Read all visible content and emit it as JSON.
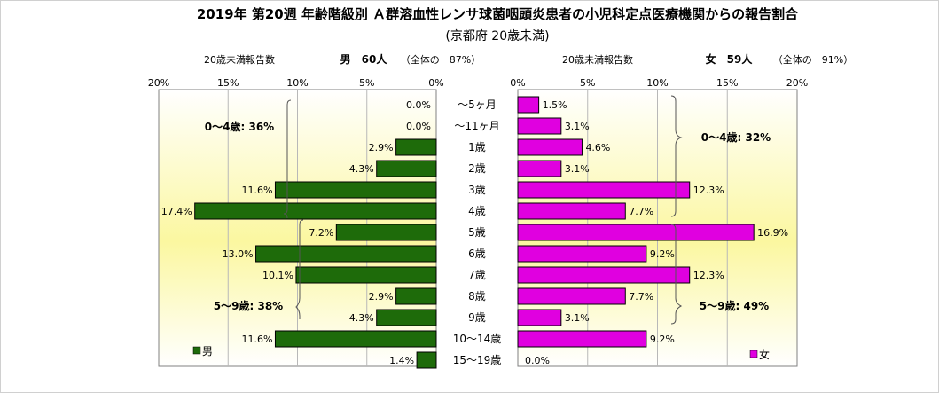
{
  "chart_data": {
    "type": "bar",
    "title": "2019年 第20週 年齢階級別 Ａ群溶血性レンサ球菌咽頭炎患者の小児科定点医療機関からの報告割合",
    "subtitle": "(京都府 20歳未満)",
    "categories": [
      "～5ヶ月",
      "～11ヶ月",
      "1歳",
      "2歳",
      "3歳",
      "4歳",
      "5歳",
      "6歳",
      "7歳",
      "8歳",
      "9歳",
      "10～14歳",
      "15～19歳"
    ],
    "xlim": [
      0,
      20
    ],
    "ticks": [
      "0%",
      "5%",
      "10%",
      "15%",
      "20%"
    ],
    "tick_values": [
      0,
      5,
      10,
      15,
      20
    ],
    "series": [
      {
        "name": "男",
        "side": "left",
        "color": "#1e6b0a",
        "header_label": "20歳未満報告数",
        "count_label": "男　60人",
        "ratio_label": "（全体の　87%）",
        "values": [
          0.0,
          0.0,
          2.9,
          4.3,
          11.6,
          17.4,
          7.2,
          13.0,
          10.1,
          2.9,
          4.3,
          11.6,
          1.4
        ],
        "labels": [
          "0.0%",
          "0.0%",
          "2.9%",
          "4.3%",
          "11.6%",
          "17.4%",
          "7.2%",
          "13.0%",
          "10.1%",
          "2.9%",
          "4.3%",
          "11.6%",
          "1.4%"
        ],
        "group_labels": [
          "0～4歳: 36%",
          "5～9歳: 38%"
        ]
      },
      {
        "name": "女",
        "side": "right",
        "color": "#e000e0",
        "header_label": "20歳未満報告数",
        "count_label": "女　59人",
        "ratio_label": "（全体の　91%）",
        "values": [
          1.5,
          3.1,
          4.6,
          3.1,
          12.3,
          7.7,
          16.9,
          9.2,
          12.3,
          7.7,
          3.1,
          9.2,
          0.0
        ],
        "labels": [
          "1.5%",
          "3.1%",
          "4.6%",
          "3.1%",
          "12.3%",
          "7.7%",
          "16.9%",
          "9.2%",
          "12.3%",
          "7.7%",
          "3.1%",
          "9.2%",
          "0.0%"
        ],
        "group_labels": [
          "0～4歳: 32%",
          "5～9歳: 49%"
        ]
      }
    ],
    "grid": true,
    "legend": "bottom-left / bottom-right"
  }
}
